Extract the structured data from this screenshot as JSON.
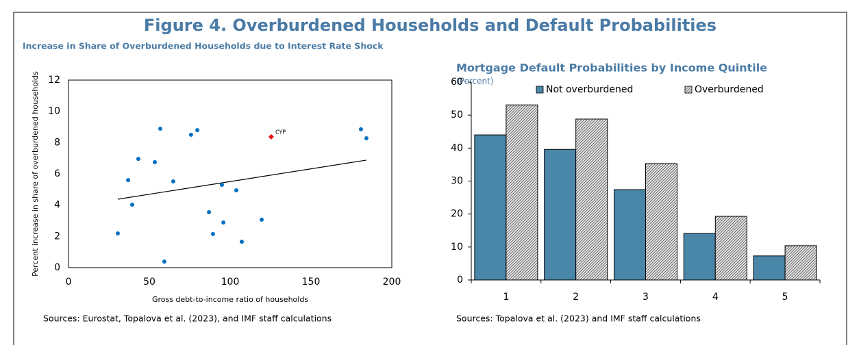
{
  "title": "Figure 4. Overburdened Households and Default Probabilities",
  "chart_data": [
    {
      "type": "scatter",
      "title": "Increase in Share of Overburdened Households due to Interest Rate Shock",
      "xlabel": "Gross debt-to-income ratio of households",
      "ylabel": "Percent increase in share of overburdened households",
      "source": "Sources: Eurostat, Topalova et al. (2023), and IMF staff calculations",
      "xlim": [
        0,
        200
      ],
      "xticks": [
        0,
        50,
        100,
        150,
        200
      ],
      "ylim": [
        0,
        12
      ],
      "yticks": [
        0,
        2,
        4,
        6,
        8,
        10,
        12
      ],
      "points": {
        "color": "#0070c0",
        "x": [
          30.5,
          36.9,
          39.4,
          43.2,
          53.4,
          56.8,
          64.8,
          59.3,
          75.8,
          79.7,
          86.9,
          89.4,
          94.9,
          95.8,
          103.8,
          107.2,
          119.5,
          180.9,
          184.3
        ],
        "y": [
          2.19,
          5.6,
          4.03,
          6.96,
          6.75,
          8.89,
          5.52,
          0.39,
          8.5,
          8.8,
          3.55,
          2.15,
          5.3,
          2.89,
          4.95,
          1.66,
          3.07,
          8.85,
          8.28
        ]
      },
      "highlight": {
        "label": "CYP",
        "x": 125.4,
        "y": 8.37,
        "color": "#e8141e"
      },
      "trendline": {
        "color": "#000000",
        "x": [
          30.5,
          184.3
        ],
        "y": [
          4.38,
          6.88
        ]
      }
    },
    {
      "type": "bar",
      "title": "Mortgage Default Probabilities by Income Quintile",
      "subtitle": "(Percent)",
      "source": "Sources: Topalova et al. (2023) and IMF staff calculations",
      "categories": [
        "1",
        "2",
        "3",
        "4",
        "5"
      ],
      "ylim": [
        0,
        60
      ],
      "yticks": [
        0,
        10,
        20,
        30,
        40,
        50,
        60
      ],
      "legend": "top",
      "series": [
        {
          "name": "Not overburdened",
          "color": "#4a86a8",
          "hatch": false,
          "values": [
            44.0,
            39.6,
            27.4,
            14.1,
            7.3
          ]
        },
        {
          "name": "Overburdened",
          "color": "#e6e6e6",
          "hatch": true,
          "values": [
            53.1,
            48.8,
            35.3,
            19.3,
            10.4
          ]
        }
      ]
    }
  ]
}
